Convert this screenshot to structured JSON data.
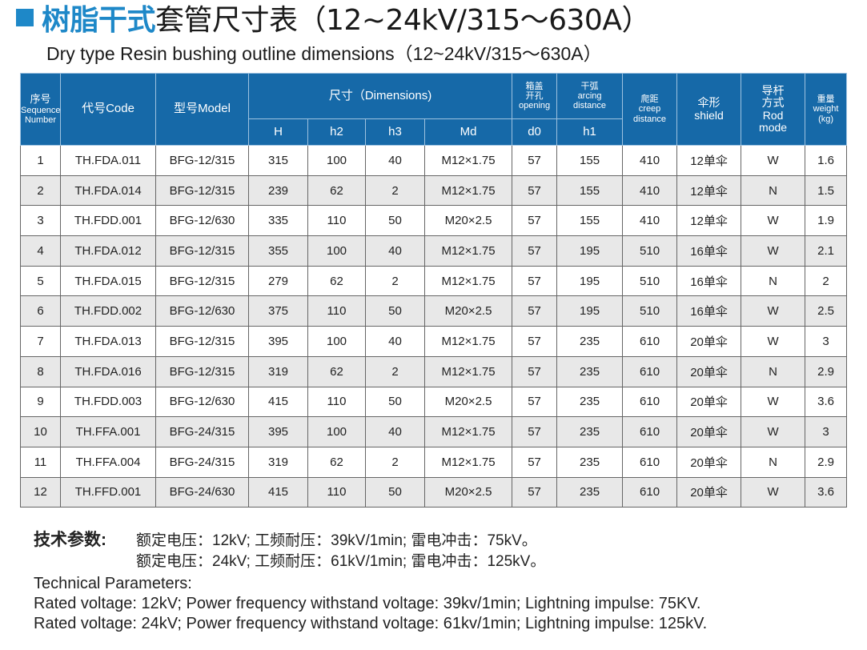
{
  "title": {
    "blue": "树脂干式",
    "black": "套管尺寸表（12~24kV/315～630A）"
  },
  "subtitle": "Dry type Resin bushing outline dimensions（12~24kV/315～630A）",
  "colors": {
    "accent": "#1e88c8",
    "header_bg": "#1669a8",
    "alt_row": "#e8e8e8"
  },
  "table": {
    "headers": {
      "seq": [
        "序号",
        "Sequence",
        "Number"
      ],
      "code": "代号Code",
      "model": "型号Model",
      "dimensions": "尺寸（Dimensions)",
      "opening": [
        "箱盖",
        "开孔",
        "opening"
      ],
      "arcing": [
        "干弧",
        "arcing",
        "distance"
      ],
      "creep": [
        "爬距",
        "creep",
        "distance"
      ],
      "shield": [
        "伞形",
        "shield"
      ],
      "rod": [
        "导杆",
        "方式",
        "Rod",
        "mode"
      ],
      "weight": [
        "重量",
        "weight",
        "(kg)"
      ],
      "sub": [
        "H",
        "h2",
        "h3",
        "Md",
        "d0",
        "h1"
      ]
    },
    "rows": [
      [
        "1",
        "TH.FDA.011",
        "BFG-12/315",
        "315",
        "100",
        "40",
        "M12×1.75",
        "57",
        "155",
        "410",
        "12单伞",
        "W",
        "1.6"
      ],
      [
        "2",
        "TH.FDA.014",
        "BFG-12/315",
        "239",
        "62",
        "2",
        "M12×1.75",
        "57",
        "155",
        "410",
        "12单伞",
        "N",
        "1.5"
      ],
      [
        "3",
        "TH.FDD.001",
        "BFG-12/630",
        "335",
        "110",
        "50",
        "M20×2.5",
        "57",
        "155",
        "410",
        "12单伞",
        "W",
        "1.9"
      ],
      [
        "4",
        "TH.FDA.012",
        "BFG-12/315",
        "355",
        "100",
        "40",
        "M12×1.75",
        "57",
        "195",
        "510",
        "16单伞",
        "W",
        "2.1"
      ],
      [
        "5",
        "TH.FDA.015",
        "BFG-12/315",
        "279",
        "62",
        "2",
        "M12×1.75",
        "57",
        "195",
        "510",
        "16单伞",
        "N",
        "2"
      ],
      [
        "6",
        "TH.FDD.002",
        "BFG-12/630",
        "375",
        "110",
        "50",
        "M20×2.5",
        "57",
        "195",
        "510",
        "16单伞",
        "W",
        "2.5"
      ],
      [
        "7",
        "TH.FDA.013",
        "BFG-12/315",
        "395",
        "100",
        "40",
        "M12×1.75",
        "57",
        "235",
        "610",
        "20单伞",
        "W",
        "3"
      ],
      [
        "8",
        "TH.FDA.016",
        "BFG-12/315",
        "319",
        "62",
        "2",
        "M12×1.75",
        "57",
        "235",
        "610",
        "20单伞",
        "N",
        "2.9"
      ],
      [
        "9",
        "TH.FDD.003",
        "BFG-12/630",
        "415",
        "110",
        "50",
        "M20×2.5",
        "57",
        "235",
        "610",
        "20单伞",
        "W",
        "3.6"
      ],
      [
        "10",
        "TH.FFA.001",
        "BFG-24/315",
        "395",
        "100",
        "40",
        "M12×1.75",
        "57",
        "235",
        "610",
        "20单伞",
        "W",
        "3"
      ],
      [
        "11",
        "TH.FFA.004",
        "BFG-24/315",
        "319",
        "62",
        "2",
        "M12×1.75",
        "57",
        "235",
        "610",
        "20单伞",
        "N",
        "2.9"
      ],
      [
        "12",
        "TH.FFD.001",
        "BFG-24/630",
        "415",
        "110",
        "50",
        "M20×2.5",
        "57",
        "235",
        "610",
        "20单伞",
        "W",
        "3.6"
      ]
    ]
  },
  "notes": {
    "cn_label": "技术参数:",
    "cn_line1": "额定电压：12kV;  工频耐压：39kV/1min;  雷电冲击：75kV。",
    "cn_line2": "额定电压：24kV;  工频耐压：61kV/1min;  雷电冲击：125kV。",
    "en_label": "Technical Parameters:",
    "en_line1": "Rated voltage: 12kV; Power frequency withstand voltage: 39kv/1min; Lightning impulse: 75KV.",
    "en_line2": "Rated voltage: 24kV; Power frequency withstand voltage: 61kv/1min; Lightning impulse: 125kV."
  }
}
